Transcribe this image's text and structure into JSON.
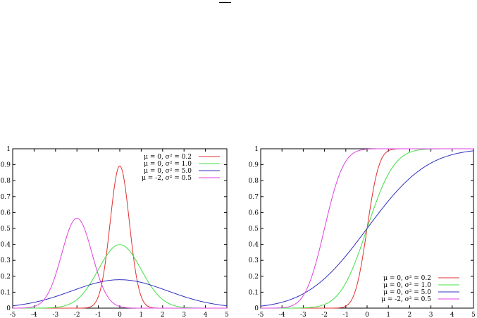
{
  "chart_data": [
    {
      "type": "line",
      "xlim": [
        -5,
        5
      ],
      "ylim": [
        0,
        1
      ],
      "xticks": [
        "-5",
        "-4",
        "-3",
        "-2",
        "-1",
        "0",
        "1",
        "2",
        "3",
        "4",
        "5"
      ],
      "yticks": [
        "0",
        "0.1",
        "0.2",
        "0.3",
        "0.4",
        "0.5",
        "0.6",
        "0.7",
        "0.8",
        "0.9",
        "1"
      ],
      "grid": false,
      "legend": "top-right",
      "series": [
        {
          "name": "μ = 0, σ² = 0.2",
          "mu": 0,
          "var": 0.2,
          "color": "#e03030",
          "peak": 0.89
        },
        {
          "name": "μ = 0, σ² = 1.0",
          "mu": 0,
          "var": 1.0,
          "color": "#40e040",
          "peak": 0.4
        },
        {
          "name": "μ = 0, σ² = 5.0",
          "mu": 0,
          "var": 5.0,
          "color": "#3030c0",
          "peak": 0.18
        },
        {
          "name": "μ = -2, σ² = 0.5",
          "mu": -2,
          "var": 0.5,
          "color": "#e040e0",
          "peak": 0.56
        }
      ]
    },
    {
      "type": "line",
      "xlim": [
        -5,
        5
      ],
      "ylim": [
        0,
        1
      ],
      "xticks": [
        "-5",
        "-4",
        "-3",
        "-2",
        "-1",
        "0",
        "1",
        "2",
        "3",
        "4",
        "5"
      ],
      "yticks": [
        "0",
        "0.1",
        "0.2",
        "0.3",
        "0.4",
        "0.5",
        "0.6",
        "0.7",
        "0.8",
        "0.9",
        "1"
      ],
      "grid": false,
      "legend": "bottom-right",
      "series": [
        {
          "name": "μ = 0, σ² = 0.2",
          "mu": 0,
          "var": 0.2,
          "color": "#e03030"
        },
        {
          "name": "μ = 0, σ² = 1.0",
          "mu": 0,
          "var": 1.0,
          "color": "#40e040"
        },
        {
          "name": "μ = 0, σ² = 5.0",
          "mu": 0,
          "var": 5.0,
          "color": "#3030c0"
        },
        {
          "name": "μ = -2, σ² = 0.5",
          "mu": -2,
          "var": 0.5,
          "color": "#e040e0"
        }
      ]
    }
  ]
}
